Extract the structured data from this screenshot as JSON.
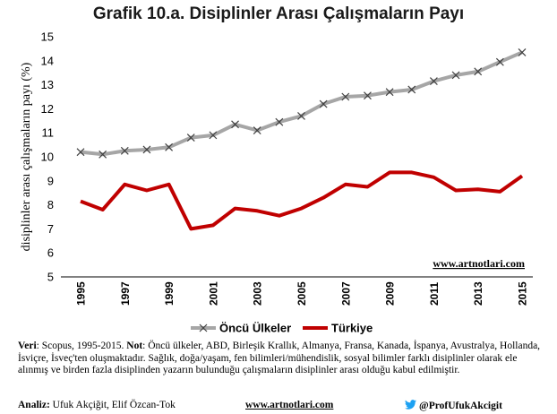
{
  "chart_data": {
    "type": "line",
    "title": "Grafik 10.a. Disiplinler Arası Çalışmaların Payı",
    "ylabel": "disiplinler arası çalışmaların payı (%)",
    "xlabel": "",
    "ylim": [
      5,
      15
    ],
    "yticks": [
      "5",
      "6",
      "7",
      "8",
      "9",
      "10",
      "11",
      "12",
      "13",
      "14",
      "15"
    ],
    "xlim": [
      1995,
      2015
    ],
    "xticks": [
      "1995",
      "1997",
      "1999",
      "2001",
      "2003",
      "2005",
      "2007",
      "2009",
      "2011",
      "2013",
      "2015"
    ],
    "x": [
      1995,
      1996,
      1997,
      1998,
      1999,
      2000,
      2001,
      2002,
      2003,
      2004,
      2005,
      2006,
      2007,
      2008,
      2009,
      2010,
      2011,
      2012,
      2013,
      2014,
      2015
    ],
    "series": [
      {
        "name": "Öncü Ülkeler",
        "color": "#a6a6a6",
        "marker": "x",
        "values": [
          10.2,
          10.1,
          10.25,
          10.3,
          10.4,
          10.8,
          10.9,
          11.35,
          11.1,
          11.45,
          11.7,
          12.2,
          12.5,
          12.55,
          12.7,
          12.8,
          13.15,
          13.4,
          13.55,
          13.95,
          14.35
        ]
      },
      {
        "name": "Türkiye",
        "color": "#c00000",
        "marker": "none",
        "values": [
          8.15,
          7.8,
          8.85,
          8.6,
          8.85,
          7.0,
          7.15,
          7.85,
          7.75,
          7.55,
          7.85,
          8.3,
          8.85,
          8.75,
          9.35,
          9.35,
          9.15,
          8.6,
          8.65,
          8.55,
          9.2
        ]
      }
    ],
    "grid": false,
    "legend": "bottom",
    "watermark": "www.artnotlari.com"
  },
  "footer": {
    "source_label": "Veri",
    "source_text": ": Scopus, 1995-2015. ",
    "note_label": "Not",
    "note_text": ": Öncü ülkeler, ABD, Birleşik Krallık, Almanya, Fransa, Kanada, İspanya, Avustralya, Hollanda, İsviçre, İsveç'ten oluşmaktadır. Sağlık, doğa/yaşam, fen bilimleri/mühendislik, sosyal bilimler farklı disiplinler olarak ele alınmış ve birden fazla disiplinden yazarın bulunduğu çalışmaların disiplinler arası olduğu kabul edilmiştir.",
    "analysis_label": "Analiz:",
    "analysis_text": " Ufuk Akçiğit, Elif Özcan-Tok",
    "site": "www.artnotlari.com",
    "twitter_handle": "@ProfUfukAkcigit",
    "twitter_icon": "twitter-bird-icon",
    "twitter_color": "#1da1f2"
  }
}
